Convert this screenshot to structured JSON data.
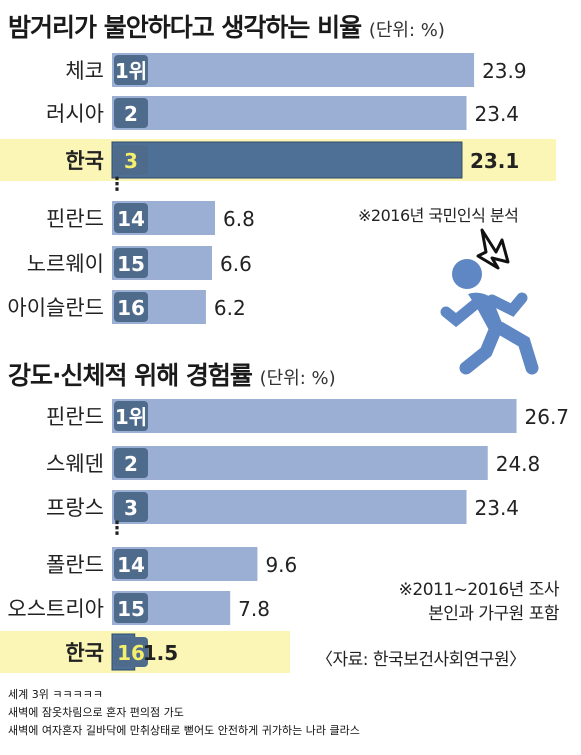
{
  "chart_data": [
    {
      "type": "bar",
      "title": "밤거리가 불안하다고 생각하는 비율",
      "unit": "(단위: %)",
      "categories": [
        "체코",
        "러시아",
        "한국",
        "핀란드",
        "노르웨이",
        "아이슬란드"
      ],
      "ranks": [
        "1위",
        "2",
        "3",
        "14",
        "15",
        "16"
      ],
      "values": [
        23.9,
        23.4,
        23.1,
        6.8,
        6.6,
        6.2
      ],
      "highlight": "한국",
      "note": "※2016년 국민인식 분석"
    },
    {
      "type": "bar",
      "title": "강도·신체적 위해 경험률",
      "unit": "(단위: %)",
      "categories": [
        "핀란드",
        "스웨덴",
        "프랑스",
        "폴란드",
        "오스트리아",
        "한국"
      ],
      "ranks": [
        "1위",
        "2",
        "3",
        "14",
        "15",
        "16"
      ],
      "values": [
        26.7,
        24.8,
        23.4,
        9.6,
        7.8,
        1.5
      ],
      "highlight": "한국",
      "note_lines": [
        "※2011~2016년 조사",
        "본인과 가구원 포함"
      ]
    }
  ],
  "source": "〈자료: 한국보건사회연구원〉",
  "comments": [
    "세계 3위 ㅋㅋㅋㅋㅋ",
    "새벽에 잠옷차림으로 혼자 편의점 가도",
    "새벽에 여자혼자 길바닥에 만취상태로 뻗어도 안전하게 귀가하는 나라 클라스"
  ],
  "colors": {
    "bar": "#9aafd3",
    "bar_highlight": "#4e6f96",
    "rank_box": "#4f6b8b",
    "highlight_bg": "#fbf6b5",
    "highlight_rank_text": "#f3ee6b",
    "figure": "#5e87c4",
    "text": "#222222"
  },
  "icons": [
    "running-person-icon",
    "alarm-burst-icon"
  ]
}
